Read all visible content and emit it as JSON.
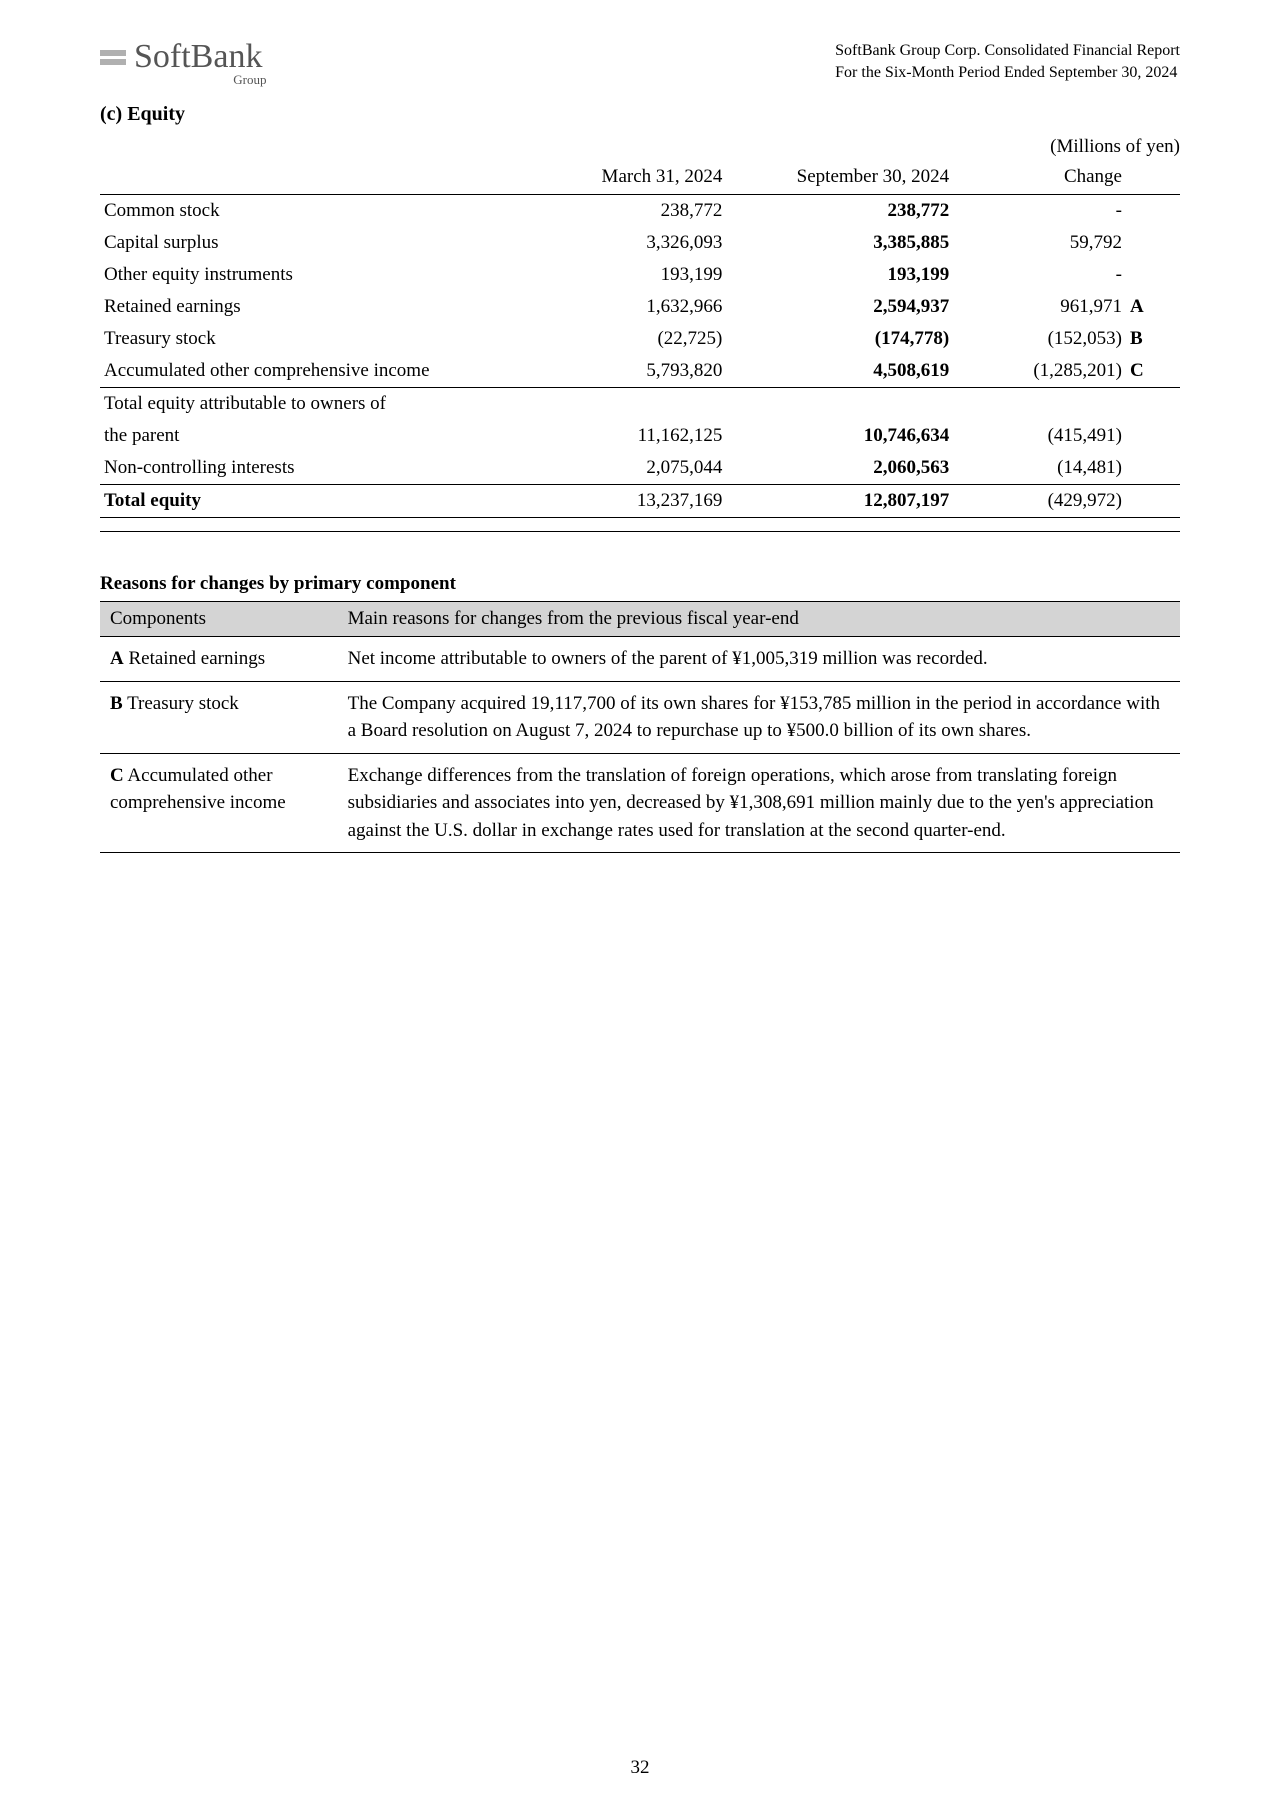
{
  "header": {
    "company": "SoftBank",
    "group": "Group",
    "right_line1": "SoftBank Group Corp. Consolidated Financial Report",
    "right_line2": "For the Six-Month Period Ended September 30, 2024"
  },
  "section_title": "(c) Equity",
  "unit_label": "(Millions of yen)",
  "equity_table": {
    "col1_header": "",
    "col2_header": "March 31, 2024",
    "col3_header": "September 30, 2024",
    "col4_header": "Change",
    "rows": [
      {
        "label": "Common stock",
        "v1": "238,772",
        "v2": "238,772",
        "chg": "-",
        "note": ""
      },
      {
        "label": "Capital surplus",
        "v1": "3,326,093",
        "v2": "3,385,885",
        "chg": "59,792",
        "note": ""
      },
      {
        "label": "Other equity instruments",
        "v1": "193,199",
        "v2": "193,199",
        "chg": "-",
        "note": ""
      },
      {
        "label": "Retained earnings",
        "v1": "1,632,966",
        "v2": "2,594,937",
        "chg": "961,971",
        "note": "A"
      },
      {
        "label": "Treasury stock",
        "v1": "(22,725)",
        "v2": "(174,778)",
        "chg": "(152,053)",
        "note": "B"
      },
      {
        "label": "Accumulated other comprehensive income",
        "v1": "5,793,820",
        "v2": "4,508,619",
        "chg": "(1,285,201)",
        "note": "C"
      }
    ],
    "subtotal1_label_line1": "Total equity attributable to owners of",
    "subtotal1_label_line2": "the parent",
    "subtotal1": {
      "v1": "11,162,125",
      "v2": "10,746,634",
      "chg": "(415,491)"
    },
    "nci": {
      "label": "Non-controlling interests",
      "v1": "2,075,044",
      "v2": "2,060,563",
      "chg": "(14,481)"
    },
    "total": {
      "label": "Total equity",
      "v1": "13,237,169",
      "v2": "12,807,197",
      "chg": "(429,972)"
    }
  },
  "reasons": {
    "heading": "Reasons for changes by primary component",
    "col1_header": "Components",
    "col2_header": "Main reasons for changes from the previous fiscal year-end",
    "rows": [
      {
        "ref": "A",
        "component": " Retained earnings",
        "text": "Net income attributable to owners of the parent of ¥1,005,319 million was recorded."
      },
      {
        "ref": "B",
        "component": " Treasury stock",
        "text": "The Company acquired 19,117,700 of its own shares for ¥153,785 million in the period in accordance with a Board resolution on August 7, 2024 to repurchase up to ¥500.0 billion of its own shares."
      },
      {
        "ref": "C",
        "component": " Accumulated other comprehensive income",
        "text": "Exchange differences from the translation of foreign operations, which arose from translating foreign subsidiaries and associates into yen, decreased by ¥1,308,691 million mainly due to the yen's appreciation against the U.S. dollar in exchange rates used for translation at the second quarter-end."
      }
    ]
  },
  "page_number": "32"
}
